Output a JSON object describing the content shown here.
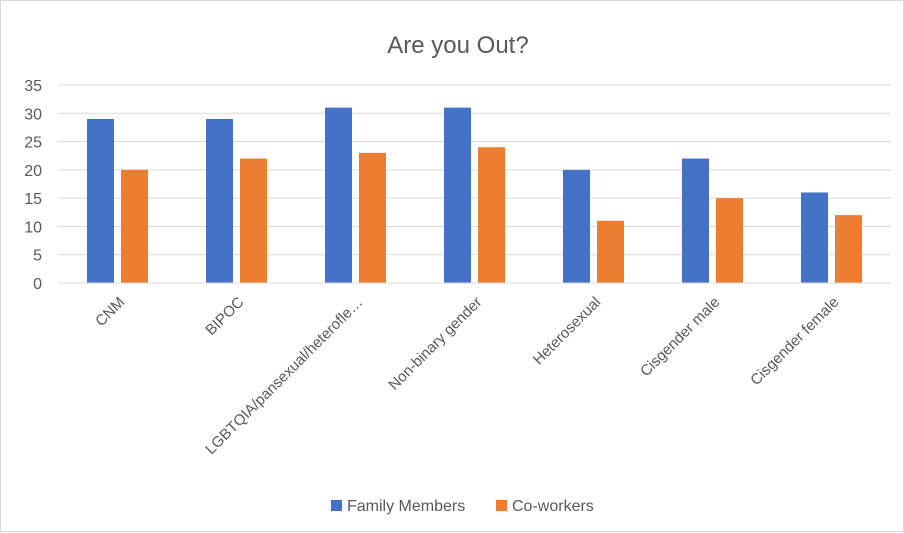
{
  "chart_data": {
    "type": "bar",
    "title": "Are you Out?",
    "categories": [
      "CNM",
      "BIPOC",
      "LGBTQIA/pansexual/heterofle…",
      "Non-binary gender",
      "Heterosexual",
      "Cisgender male",
      "Cisgender female"
    ],
    "series": [
      {
        "name": "Family Members",
        "values": [
          29,
          29,
          31,
          31,
          20,
          22,
          16
        ],
        "color": "#4472c4"
      },
      {
        "name": "Co-workers",
        "values": [
          20,
          22,
          23,
          24,
          11,
          15,
          12
        ],
        "color": "#ed7d31"
      }
    ],
    "ylim": [
      0,
      35
    ],
    "yticks": [
      0,
      5,
      10,
      15,
      20,
      25,
      30,
      35
    ],
    "grid": true,
    "legend": "bottom",
    "xlabel": "",
    "ylabel": ""
  }
}
